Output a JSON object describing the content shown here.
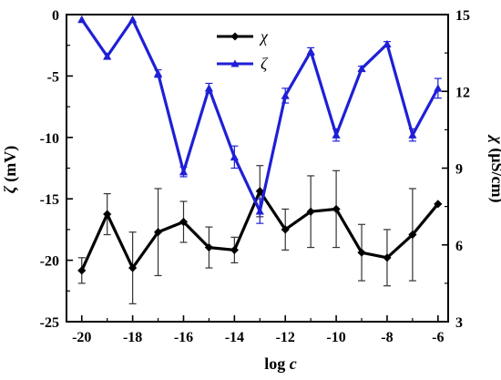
{
  "chart_data": {
    "type": "line",
    "x": [
      -20,
      -19,
      -18,
      -17,
      -16,
      -15,
      -14,
      -13,
      -12,
      -11,
      -10,
      -9,
      -8,
      -7,
      -6
    ],
    "xlabel": {
      "main": "log ",
      "var": "c"
    },
    "ylabel_left": {
      "var": "ζ",
      "unit": " (mV)"
    },
    "ylabel_right": {
      "var": "χ",
      "unit": " (μS/cm)"
    },
    "xlim": [
      -20.6,
      -5.6
    ],
    "ylim_left": [
      -25,
      0
    ],
    "ylim_right": [
      3,
      15
    ],
    "xticks": [
      -20,
      -18,
      -16,
      -14,
      -12,
      -10,
      -8,
      -6
    ],
    "xticks_text": [
      "-20",
      "-18",
      "-16",
      "-14",
      "-12",
      "-10",
      "-8",
      "-6"
    ],
    "yticks_left": [
      0,
      -5,
      -10,
      -15,
      -20,
      -25
    ],
    "yticks_left_text": [
      "0",
      "-5",
      "-10",
      "-15",
      "-20",
      "-25"
    ],
    "yticks_right": [
      15,
      12,
      9,
      6,
      3
    ],
    "yticks_right_text": [
      "15",
      "12",
      "9",
      "6",
      "3"
    ],
    "grid": false,
    "legend_placement": "top-center",
    "series": [
      {
        "name": "χ",
        "axis": "right",
        "color": "#000000",
        "marker": "diamond",
        "values": [
          5.0,
          7.2,
          5.1,
          6.5,
          6.9,
          5.9,
          5.8,
          8.1,
          6.6,
          7.3,
          7.4,
          5.7,
          5.5,
          6.4,
          7.6
        ],
        "errors": [
          0.5,
          0.8,
          1.4,
          1.7,
          0.8,
          0.8,
          0.5,
          1.0,
          0.8,
          1.4,
          1.5,
          1.1,
          1.1,
          1.8,
          0.0
        ]
      },
      {
        "name": "ζ",
        "axis": "left",
        "color": "#1f1fd6",
        "marker": "triangle",
        "values": [
          -0.4,
          -3.4,
          -0.4,
          -4.8,
          -12.8,
          -6.0,
          -11.6,
          -16.0,
          -6.6,
          -3.0,
          -9.8,
          -4.4,
          -2.4,
          -9.8,
          -6.0
        ],
        "errors": [
          0.0,
          0.0,
          0.0,
          0.3,
          0.4,
          0.4,
          0.9,
          1.0,
          0.6,
          0.3,
          0.5,
          0.2,
          0.2,
          0.5,
          0.8
        ]
      }
    ]
  }
}
